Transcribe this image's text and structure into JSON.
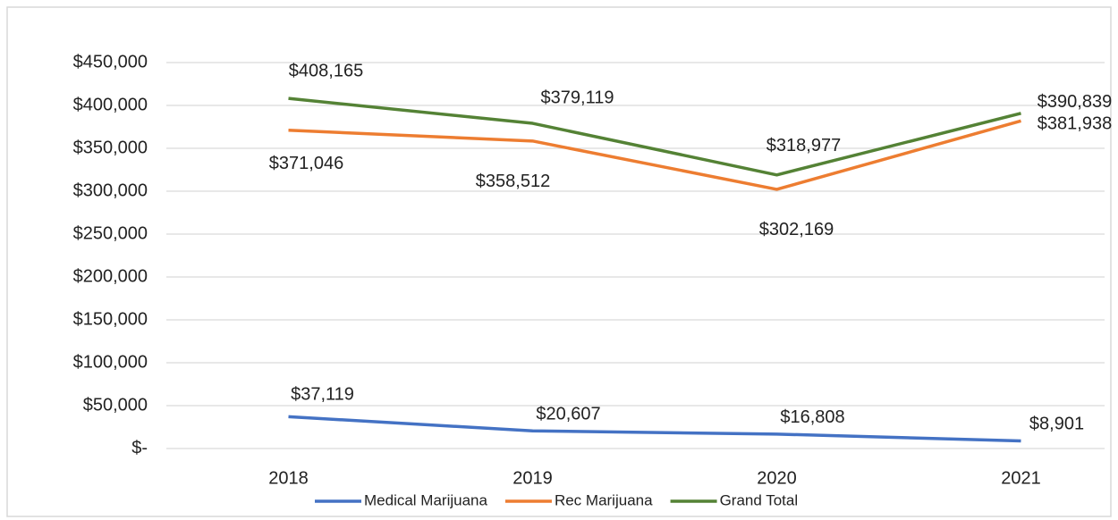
{
  "chart_data": {
    "type": "line",
    "categories": [
      "2018",
      "2019",
      "2020",
      "2021"
    ],
    "series": [
      {
        "name": "Medical Marijuana",
        "color": "#4472c4",
        "values": [
          37119,
          20607,
          16808,
          8901
        ],
        "value_labels": [
          "$37,119",
          "$20,607",
          "$16,808",
          "$8,901"
        ]
      },
      {
        "name": "Rec Marijuana",
        "color": "#ed7d31",
        "values": [
          371046,
          358512,
          302169,
          381938
        ],
        "value_labels": [
          "$371,046",
          "$358,512",
          "$302,169",
          "$381,938"
        ]
      },
      {
        "name": "Grand Total",
        "color": "#548235",
        "values": [
          408165,
          379119,
          318977,
          390839
        ],
        "value_labels": [
          "$408,165",
          "$379,119",
          "$318,977",
          "$390,839"
        ]
      }
    ],
    "ylim": [
      0,
      450000
    ],
    "yticks": [
      {
        "value": 0,
        "label": "$-"
      },
      {
        "value": 50000,
        "label": "$50,000"
      },
      {
        "value": 100000,
        "label": "$100,000"
      },
      {
        "value": 150000,
        "label": "$150,000"
      },
      {
        "value": 200000,
        "label": "$200,000"
      },
      {
        "value": 250000,
        "label": "$250,000"
      },
      {
        "value": 300000,
        "label": "$300,000"
      },
      {
        "value": 350000,
        "label": "$350,000"
      },
      {
        "value": 400000,
        "label": "$400,000"
      },
      {
        "value": 450000,
        "label": "$450,000"
      }
    ],
    "grid": true,
    "legend": "bottom"
  }
}
